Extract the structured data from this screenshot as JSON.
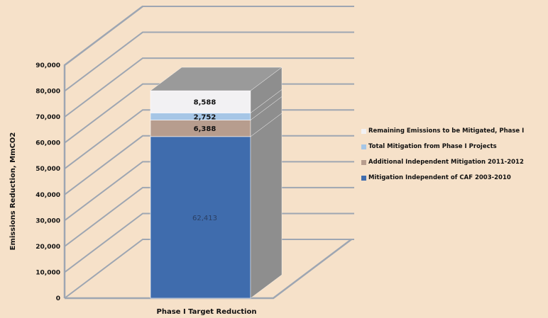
{
  "chart_data": {
    "type": "bar",
    "stacked": true,
    "three_d": true,
    "categories": [
      "Phase I Target Reduction"
    ],
    "xlabel": "Phase I Target Reduction",
    "ylabel": "Emissions Reduction, MmCO2",
    "ylim": [
      0,
      90000
    ],
    "yticks": [
      "0",
      "10,000",
      "20,000",
      "30,000",
      "40,000",
      "50,000",
      "60,000",
      "70,000",
      "80,000",
      "90,000"
    ],
    "grid": true,
    "legend_position": "right",
    "series": [
      {
        "name": "Mitigation Independent of CAF 2003-2010",
        "values": [
          62413
        ],
        "label": "62,413",
        "color": "#3f6cad"
      },
      {
        "name": "Additional Independent Mitigation 2011-2012",
        "values": [
          6388
        ],
        "label": "6,388",
        "color": "#b79d8e"
      },
      {
        "name": "Total Mitigation from Phase I Projects",
        "values": [
          2752
        ],
        "label": "2,752",
        "color": "#a6c6e6"
      },
      {
        "name": "Remaining Emissions to be Mitigated, Phase I",
        "values": [
          8588
        ],
        "label": "8,588",
        "color": "#f2f1f3"
      }
    ]
  },
  "legend_order": [
    3,
    2,
    1,
    0
  ],
  "colors": {
    "background": "#f6e1c9",
    "gridline": "#9ea6b2",
    "wall_line": "#9ea6b2",
    "bar_top": "#9a9a9a",
    "bar_side": "#8e8e8e"
  }
}
